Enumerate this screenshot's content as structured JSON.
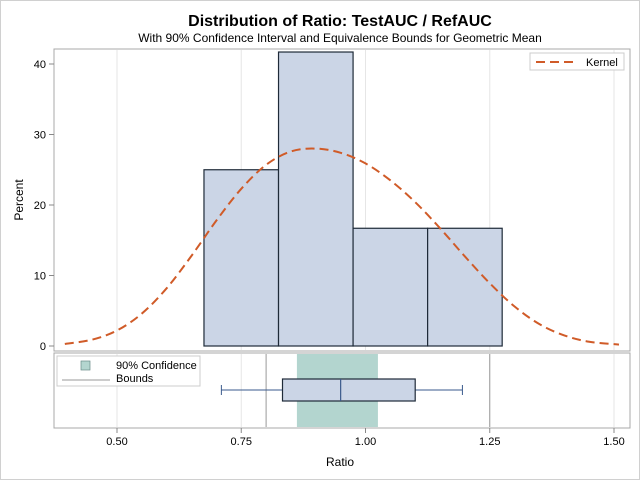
{
  "chart_data": {
    "type": "bar",
    "title": "Distribution of Ratio: TestAUC / RefAUC",
    "subtitle": "With 90% Confidence Interval and Equivalence Bounds for Geometric Mean",
    "xlabel": "Ratio",
    "ylabel": "Percent",
    "xlim": [
      0.385,
      1.52
    ],
    "ylim": [
      0,
      42
    ],
    "grid": true,
    "x_ticks": [
      0.5,
      0.75,
      1.0,
      1.25,
      1.5
    ],
    "x_tick_labels": [
      "0.50",
      "0.75",
      "1.00",
      "1.25",
      "1.50"
    ],
    "y_ticks": [
      0,
      10,
      20,
      30,
      40
    ],
    "y_tick_labels": [
      "0",
      "10",
      "20",
      "30",
      "40"
    ],
    "histogram": {
      "bins": [
        {
          "lo": 0.675,
          "hi": 0.825,
          "percent": 25.0
        },
        {
          "lo": 0.825,
          "hi": 0.975,
          "percent": 41.7
        },
        {
          "lo": 0.975,
          "hi": 1.125,
          "percent": 16.7
        },
        {
          "lo": 1.125,
          "hi": 1.275,
          "percent": 16.7
        }
      ],
      "fill": "#cbd5e6",
      "stroke": "#1e2a38"
    },
    "kernel": {
      "name": "Kernel",
      "color": "#d05b28",
      "x": [
        0.395,
        0.45,
        0.5,
        0.55,
        0.6,
        0.65,
        0.7,
        0.75,
        0.8,
        0.85,
        0.9,
        0.95,
        1.0,
        1.05,
        1.1,
        1.15,
        1.2,
        1.25,
        1.3,
        1.35,
        1.4,
        1.45,
        1.51
      ],
      "y": [
        0.3,
        0.9,
        2.2,
        4.6,
        8.2,
        12.8,
        17.8,
        22.3,
        25.7,
        27.6,
        28.0,
        27.4,
        25.9,
        23.5,
        20.4,
        16.7,
        12.7,
        8.9,
        5.6,
        3.1,
        1.5,
        0.6,
        0.2
      ]
    },
    "legend_top": {
      "position": "top-right",
      "entries": [
        "Kernel"
      ]
    },
    "boxplot": {
      "whisker_low": 0.71,
      "q1": 0.833,
      "median": 0.95,
      "q3": 1.1,
      "whisker_high": 1.195,
      "fill": "#cbd5e6",
      "line": "#3a5a8c"
    },
    "confidence_interval": {
      "label": "90% Confidence",
      "lower": 0.862,
      "upper": 1.025,
      "color": "#b3d5cf"
    },
    "equivalence_bounds": {
      "label": "Bounds",
      "lower": 0.8,
      "upper": 1.25
    },
    "legend_bottom": {
      "position": "top-left",
      "entries": [
        "90% Confidence",
        "Bounds"
      ]
    }
  }
}
